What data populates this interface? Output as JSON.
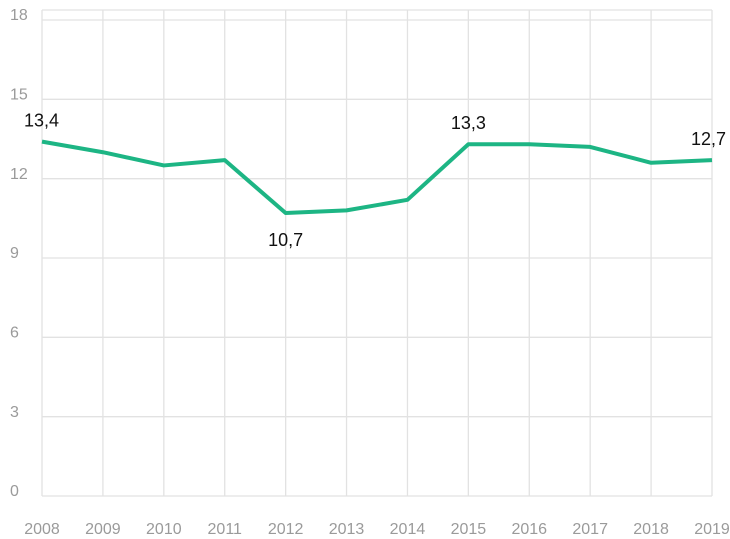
{
  "chart_data": {
    "type": "line",
    "categories": [
      "2008",
      "2009",
      "2010",
      "2011",
      "2012",
      "2013",
      "2014",
      "2015",
      "2016",
      "2017",
      "2018",
      "2019"
    ],
    "series": [
      {
        "color": "#1db584",
        "values": [
          13.4,
          13.0,
          12.5,
          12.7,
          10.7,
          10.8,
          11.2,
          13.3,
          13.3,
          13.2,
          12.6,
          12.7
        ],
        "value_labels": [
          "13,4",
          null,
          null,
          null,
          "10,7",
          null,
          null,
          "13,3",
          null,
          null,
          null,
          "12,7"
        ]
      }
    ],
    "ylim": [
      0,
      18
    ],
    "yticks": [
      0,
      3,
      6,
      9,
      12,
      15,
      18
    ],
    "grid": true
  }
}
